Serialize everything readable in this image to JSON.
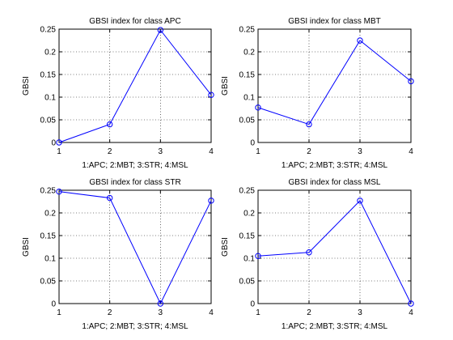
{
  "chart_data": [
    {
      "type": "line",
      "title": "GBSI index for class APC",
      "xlabel": "1:APC; 2:MBT; 3:STR; 4:MSL",
      "ylabel": "GBSI",
      "x": [
        1,
        2,
        3,
        4
      ],
      "xticks": [
        "1",
        "2",
        "3",
        "4"
      ],
      "yticks": [
        "0",
        "0.05",
        "0.1",
        "0.15",
        "0.2",
        "0.25"
      ],
      "xlim": [
        1,
        4
      ],
      "ylim": [
        0,
        0.25
      ],
      "grid": true,
      "series": [
        {
          "values": [
            0.0,
            0.04,
            0.248,
            0.105
          ]
        }
      ]
    },
    {
      "type": "line",
      "title": "GBSI index for class MBT",
      "xlabel": "1:APC; 2:MBT; 3:STR; 4:MSL",
      "ylabel": "GBSI",
      "x": [
        1,
        2,
        3,
        4
      ],
      "xticks": [
        "1",
        "2",
        "3",
        "4"
      ],
      "yticks": [
        "0",
        "0.05",
        "0.1",
        "0.15",
        "0.2",
        "0.25"
      ],
      "xlim": [
        1,
        4
      ],
      "ylim": [
        0,
        0.25
      ],
      "grid": true,
      "series": [
        {
          "values": [
            0.077,
            0.04,
            0.225,
            0.135
          ]
        }
      ]
    },
    {
      "type": "line",
      "title": "GBSI index for class STR",
      "xlabel": "1:APC; 2:MBT; 3:STR; 4:MSL",
      "ylabel": "GBSI",
      "x": [
        1,
        2,
        3,
        4
      ],
      "xticks": [
        "1",
        "2",
        "3",
        "4"
      ],
      "yticks": [
        "0",
        "0.05",
        "0.1",
        "0.15",
        "0.2",
        "0.25"
      ],
      "xlim": [
        1,
        4
      ],
      "ylim": [
        0,
        0.25
      ],
      "grid": true,
      "series": [
        {
          "values": [
            0.247,
            0.233,
            0.0,
            0.227
          ]
        }
      ]
    },
    {
      "type": "line",
      "title": "GBSI index for class MSL",
      "xlabel": "1:APC; 2:MBT; 3:STR; 4:MSL",
      "ylabel": "GBSI",
      "x": [
        1,
        2,
        3,
        4
      ],
      "xticks": [
        "1",
        "2",
        "3",
        "4"
      ],
      "yticks": [
        "0",
        "0.05",
        "0.1",
        "0.15",
        "0.2",
        "0.25"
      ],
      "xlim": [
        1,
        4
      ],
      "ylim": [
        0,
        0.25
      ],
      "grid": true,
      "series": [
        {
          "values": [
            0.105,
            0.113,
            0.227,
            0.0
          ]
        }
      ]
    }
  ],
  "colors": {
    "line": "#0000ff",
    "axes": "#000000",
    "grid": "#000000",
    "background": "#ffffff"
  }
}
